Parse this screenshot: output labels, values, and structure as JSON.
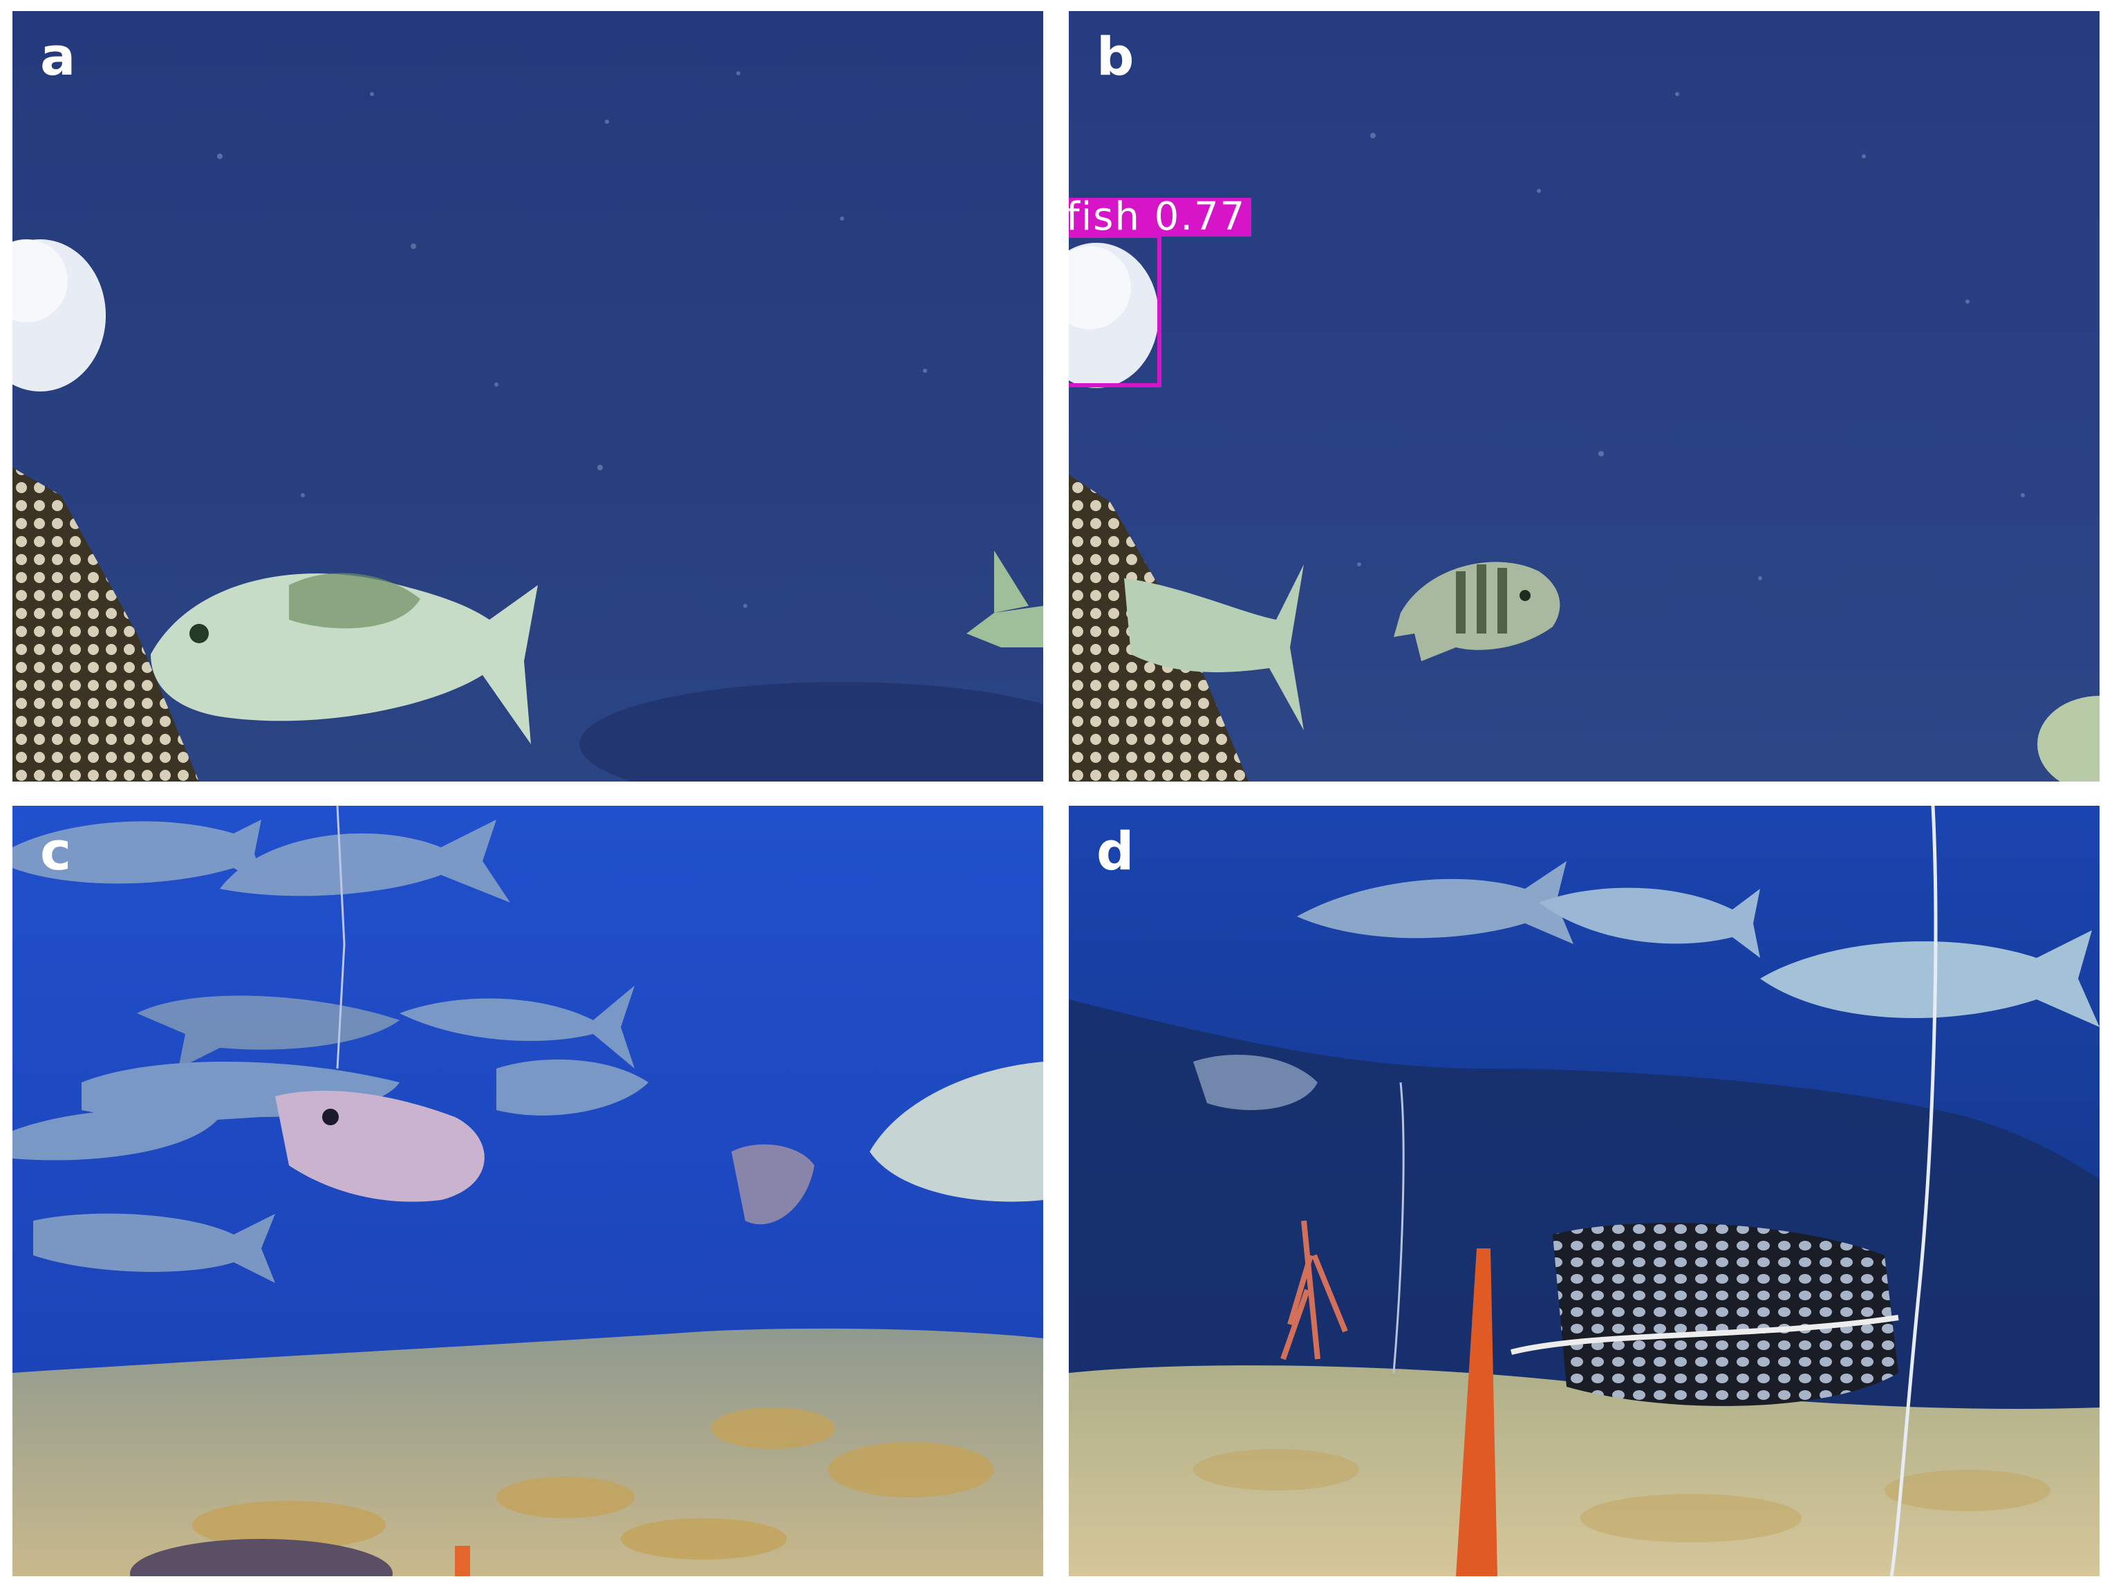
{
  "panels": [
    {
      "letter": "a"
    },
    {
      "letter": "b"
    },
    {
      "letter": "c"
    },
    {
      "letter": "d"
    }
  ],
  "detection": {
    "label": "fish",
    "score": "0.77",
    "text": "fish  0.77",
    "color": "#d614c8"
  },
  "colors": {
    "deep_water_ab": "#263a78",
    "blue_water_c": "#1f49c4",
    "blue_water_d": "#163ea0",
    "seabed": "#c9b888"
  }
}
